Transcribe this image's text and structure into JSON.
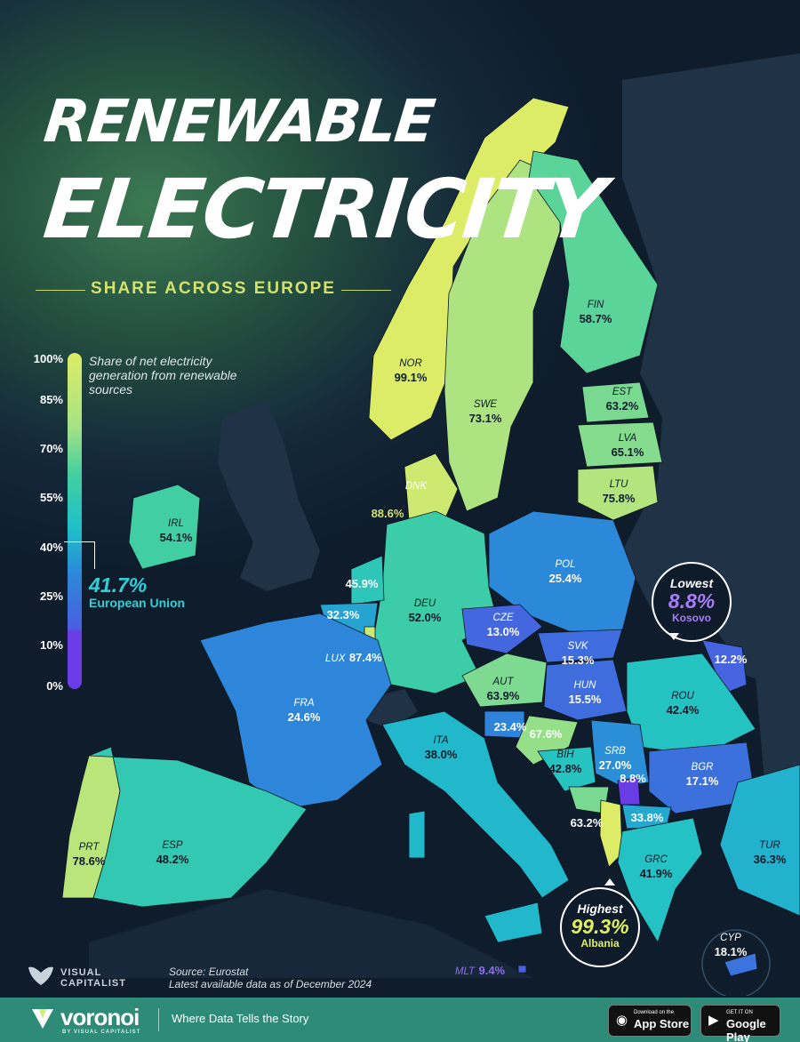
{
  "title": {
    "line1": "RENEWABLE",
    "line2": "ELECTRICITY",
    "subtitle": "SHARE ACROSS EUROPE"
  },
  "legend": {
    "title": "Share of net electricity generation from renewable sources",
    "ticks": [
      "100%",
      "85%",
      "70%",
      "55%",
      "40%",
      "25%",
      "10%",
      "0%"
    ],
    "eu_value": "41.7%",
    "eu_label": "European Union"
  },
  "chart_data": {
    "type": "choropleth",
    "unit": "%",
    "countries": [
      {
        "code": "NOR",
        "value": 99.1,
        "label": "99.1%"
      },
      {
        "code": "SWE",
        "value": 73.1,
        "label": "73.1%"
      },
      {
        "code": "FIN",
        "value": 58.7,
        "label": "58.7%"
      },
      {
        "code": "EST",
        "value": 63.2,
        "label": "63.2%"
      },
      {
        "code": "LVA",
        "value": 65.1,
        "label": "65.1%"
      },
      {
        "code": "LTU",
        "value": 75.8,
        "label": "75.8%"
      },
      {
        "code": "DNK",
        "value": 88.6,
        "label": "88.6%"
      },
      {
        "code": "IRL",
        "value": 54.1,
        "label": "54.1%"
      },
      {
        "code": "POL",
        "value": 25.4,
        "label": "25.4%"
      },
      {
        "code": "DEU",
        "value": 52.0,
        "label": "52.0%"
      },
      {
        "code": "NLD",
        "value": 45.9,
        "label": "45.9%"
      },
      {
        "code": "BEL",
        "value": 32.3,
        "label": "32.3%"
      },
      {
        "code": "LUX",
        "value": 87.4,
        "label": "87.4%"
      },
      {
        "code": "CZE",
        "value": 13.0,
        "label": "13.0%"
      },
      {
        "code": "SVK",
        "value": 15.3,
        "label": "15.3%"
      },
      {
        "code": "MDA",
        "value": 12.2,
        "label": "12.2%"
      },
      {
        "code": "AUT",
        "value": 63.9,
        "label": "63.9%"
      },
      {
        "code": "HUN",
        "value": 15.5,
        "label": "15.5%"
      },
      {
        "code": "ROU",
        "value": 42.4,
        "label": "42.4%"
      },
      {
        "code": "FRA",
        "value": 24.6,
        "label": "24.6%"
      },
      {
        "code": "SVN",
        "value": 23.4,
        "label": "23.4%"
      },
      {
        "code": "HRV",
        "value": 67.6,
        "label": "67.6%"
      },
      {
        "code": "ITA",
        "value": 38.0,
        "label": "38.0%"
      },
      {
        "code": "BIH",
        "value": 42.8,
        "label": "42.8%"
      },
      {
        "code": "SRB",
        "value": 27.0,
        "label": "27.0%"
      },
      {
        "code": "XKX",
        "value": 8.8,
        "label": "8.8%"
      },
      {
        "code": "BGR",
        "value": 17.1,
        "label": "17.1%"
      },
      {
        "code": "MNE",
        "value": 63.2,
        "label": "63.2%"
      },
      {
        "code": "MKD",
        "value": 33.8,
        "label": "33.8%"
      },
      {
        "code": "PRT",
        "value": 78.6,
        "label": "78.6%"
      },
      {
        "code": "ESP",
        "value": 48.2,
        "label": "48.2%"
      },
      {
        "code": "GRC",
        "value": 41.9,
        "label": "41.9%"
      },
      {
        "code": "TUR",
        "value": 36.3,
        "label": "36.3%"
      },
      {
        "code": "CYP",
        "value": 18.1,
        "label": "18.1%"
      },
      {
        "code": "MLT",
        "value": 9.4,
        "label": "9.4%"
      },
      {
        "code": "ALB",
        "value": 99.3,
        "label": "99.3%"
      }
    ]
  },
  "callouts": {
    "lowest": {
      "heading": "Lowest",
      "value": "8.8%",
      "name": "Kosovo",
      "color": "#a97cf5"
    },
    "highest": {
      "heading": "Highest",
      "value": "99.3%",
      "name": "Albania",
      "color": "#e1ee63"
    }
  },
  "source": {
    "line1": "Source: Eurostat",
    "line2": "Latest available data as of December 2024"
  },
  "branding": {
    "vc_line1": "VISUAL",
    "vc_line2": "CAPITALIST",
    "voronoi": "voronoi",
    "voronoi_sub": "BY VISUAL CAPITALIST",
    "tagline": "Where Data Tells the Story",
    "app_store_small": "Download on the",
    "app_store_big": "App Store",
    "google_small": "GET IT ON",
    "google_big": "Google Play"
  },
  "colors": {
    "land_nodata": "#1f3246",
    "sea": "#0b1622",
    "accent": "#d3e26c",
    "eu_accent": "#2fd0d8",
    "footer": "#2e8b78"
  }
}
